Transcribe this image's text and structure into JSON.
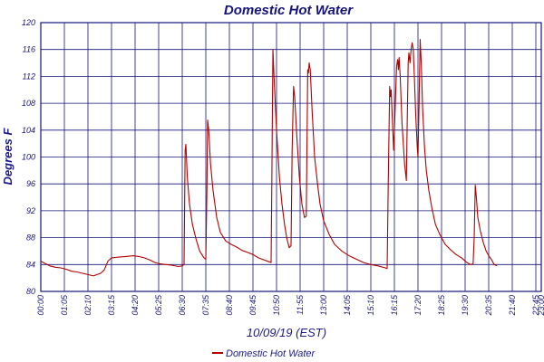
{
  "chart_data": {
    "type": "line",
    "title": "Domestic Hot Water",
    "xlabel": "10/09/19 (EST)",
    "ylabel": "Degrees F",
    "ylim": [
      80,
      120
    ],
    "yticks": [
      "80",
      "84",
      "88",
      "92",
      "96",
      "100",
      "104",
      "108",
      "112",
      "116",
      "120"
    ],
    "xlim_minutes": [
      0,
      1380
    ],
    "xticks": [
      {
        "label": "00:00",
        "minute": 0
      },
      {
        "label": "01:05",
        "minute": 65
      },
      {
        "label": "02:10",
        "minute": 130
      },
      {
        "label": "03:15",
        "minute": 195
      },
      {
        "label": "04:20",
        "minute": 260
      },
      {
        "label": "05:25",
        "minute": 325
      },
      {
        "label": "06:30",
        "minute": 390
      },
      {
        "label": "07:35",
        "minute": 455
      },
      {
        "label": "08:40",
        "minute": 520
      },
      {
        "label": "09:45",
        "minute": 585
      },
      {
        "label": "10:50",
        "minute": 650
      },
      {
        "label": "11:55",
        "minute": 715
      },
      {
        "label": "13:00",
        "minute": 780
      },
      {
        "label": "14:05",
        "minute": 845
      },
      {
        "label": "15:10",
        "minute": 910
      },
      {
        "label": "16:15",
        "minute": 975
      },
      {
        "label": "17:20",
        "minute": 1040
      },
      {
        "label": "18:25",
        "minute": 1105
      },
      {
        "label": "19:30",
        "minute": 1170
      },
      {
        "label": "20:35",
        "minute": 1235
      },
      {
        "label": "21:40",
        "minute": 1300
      },
      {
        "label": "22:45",
        "minute": 1365
      },
      {
        "label": "23:00",
        "minute": 1380
      }
    ],
    "grid": true,
    "legend": "bottom",
    "series": [
      {
        "name": "Domestic Hot Water",
        "color": "#b00000",
        "points": [
          [
            0,
            84.5
          ],
          [
            10,
            84.2
          ],
          [
            25,
            83.8
          ],
          [
            40,
            83.6
          ],
          [
            55,
            83.5
          ],
          [
            70,
            83.3
          ],
          [
            85,
            83.0
          ],
          [
            100,
            82.9
          ],
          [
            115,
            82.7
          ],
          [
            130,
            82.5
          ],
          [
            145,
            82.3
          ],
          [
            155,
            82.5
          ],
          [
            165,
            82.7
          ],
          [
            175,
            83.2
          ],
          [
            185,
            84.5
          ],
          [
            195,
            85.0
          ],
          [
            215,
            85.1
          ],
          [
            235,
            85.2
          ],
          [
            255,
            85.3
          ],
          [
            270,
            85.2
          ],
          [
            285,
            85.0
          ],
          [
            300,
            84.7
          ],
          [
            315,
            84.3
          ],
          [
            330,
            84.1
          ],
          [
            345,
            84.0
          ],
          [
            360,
            83.9
          ],
          [
            380,
            83.7
          ],
          [
            390,
            83.8
          ],
          [
            395,
            84.0
          ],
          [
            398,
            101.0
          ],
          [
            400,
            101.9
          ],
          [
            404,
            97.0
          ],
          [
            410,
            93.0
          ],
          [
            418,
            90.0
          ],
          [
            428,
            87.8
          ],
          [
            438,
            86.0
          ],
          [
            450,
            85.0
          ],
          [
            455,
            84.8
          ],
          [
            458,
            95.0
          ],
          [
            460,
            105.5
          ],
          [
            463,
            104.0
          ],
          [
            468,
            99.0
          ],
          [
            475,
            95.0
          ],
          [
            485,
            91.0
          ],
          [
            495,
            88.8
          ],
          [
            510,
            87.5
          ],
          [
            525,
            87.0
          ],
          [
            540,
            86.6
          ],
          [
            555,
            86.1
          ],
          [
            570,
            85.8
          ],
          [
            585,
            85.5
          ],
          [
            600,
            85.0
          ],
          [
            615,
            84.7
          ],
          [
            630,
            84.4
          ],
          [
            635,
            84.3
          ],
          [
            637,
            96.0
          ],
          [
            640,
            116.0
          ],
          [
            643,
            112.0
          ],
          [
            650,
            104.0
          ],
          [
            658,
            97.0
          ],
          [
            665,
            93.0
          ],
          [
            672,
            90.0
          ],
          [
            678,
            88.0
          ],
          [
            685,
            86.5
          ],
          [
            690,
            86.8
          ],
          [
            693,
            101.0
          ],
          [
            697,
            110.5
          ],
          [
            700,
            109.0
          ],
          [
            706,
            103.0
          ],
          [
            713,
            97.0
          ],
          [
            720,
            93.0
          ],
          [
            727,
            91.0
          ],
          [
            732,
            91.2
          ],
          [
            734,
            102.0
          ],
          [
            736,
            113.0
          ],
          [
            738,
            112.5
          ],
          [
            740,
            114.0
          ],
          [
            743,
            113.0
          ],
          [
            748,
            107.0
          ],
          [
            755,
            100.0
          ],
          [
            763,
            96.0
          ],
          [
            770,
            93.0
          ],
          [
            780,
            90.5
          ],
          [
            795,
            88.5
          ],
          [
            810,
            87.0
          ],
          [
            830,
            86.0
          ],
          [
            850,
            85.3
          ],
          [
            870,
            84.8
          ],
          [
            890,
            84.3
          ],
          [
            910,
            84.0
          ],
          [
            930,
            83.8
          ],
          [
            950,
            83.5
          ],
          [
            955,
            83.4
          ],
          [
            958,
            96.0
          ],
          [
            962,
            110.5
          ],
          [
            964,
            109.0
          ],
          [
            966,
            110.0
          ],
          [
            969,
            106.0
          ],
          [
            973,
            101.0
          ],
          [
            977,
            107.0
          ],
          [
            981,
            113.5
          ],
          [
            984,
            114.5
          ],
          [
            986,
            113.0
          ],
          [
            988,
            114.8
          ],
          [
            991,
            112.0
          ],
          [
            996,
            105.0
          ],
          [
            1003,
            99.0
          ],
          [
            1008,
            96.5
          ],
          [
            1010,
            104.0
          ],
          [
            1013,
            114.0
          ],
          [
            1015,
            115.5
          ],
          [
            1018,
            114.0
          ],
          [
            1021,
            116.0
          ],
          [
            1024,
            117.0
          ],
          [
            1027,
            116.0
          ],
          [
            1030,
            112.0
          ],
          [
            1034,
            106.0
          ],
          [
            1038,
            101.5
          ],
          [
            1040,
            100.0
          ],
          [
            1043,
            108.0
          ],
          [
            1046,
            117.5
          ],
          [
            1049,
            114.0
          ],
          [
            1053,
            107.0
          ],
          [
            1058,
            101.5
          ],
          [
            1063,
            98.0
          ],
          [
            1070,
            95.0
          ],
          [
            1078,
            92.5
          ],
          [
            1088,
            90.0
          ],
          [
            1100,
            88.5
          ],
          [
            1115,
            87.0
          ],
          [
            1130,
            86.2
          ],
          [
            1145,
            85.5
          ],
          [
            1160,
            85.0
          ],
          [
            1175,
            84.3
          ],
          [
            1185,
            84.0
          ],
          [
            1192,
            84.1
          ],
          [
            1195,
            88.0
          ],
          [
            1198,
            95.8
          ],
          [
            1201,
            94.0
          ],
          [
            1205,
            91.0
          ],
          [
            1212,
            89.0
          ],
          [
            1220,
            87.3
          ],
          [
            1228,
            86.0
          ],
          [
            1235,
            85.3
          ],
          [
            1242,
            84.8
          ],
          [
            1250,
            84.0
          ],
          [
            1258,
            83.8
          ]
        ]
      }
    ]
  }
}
